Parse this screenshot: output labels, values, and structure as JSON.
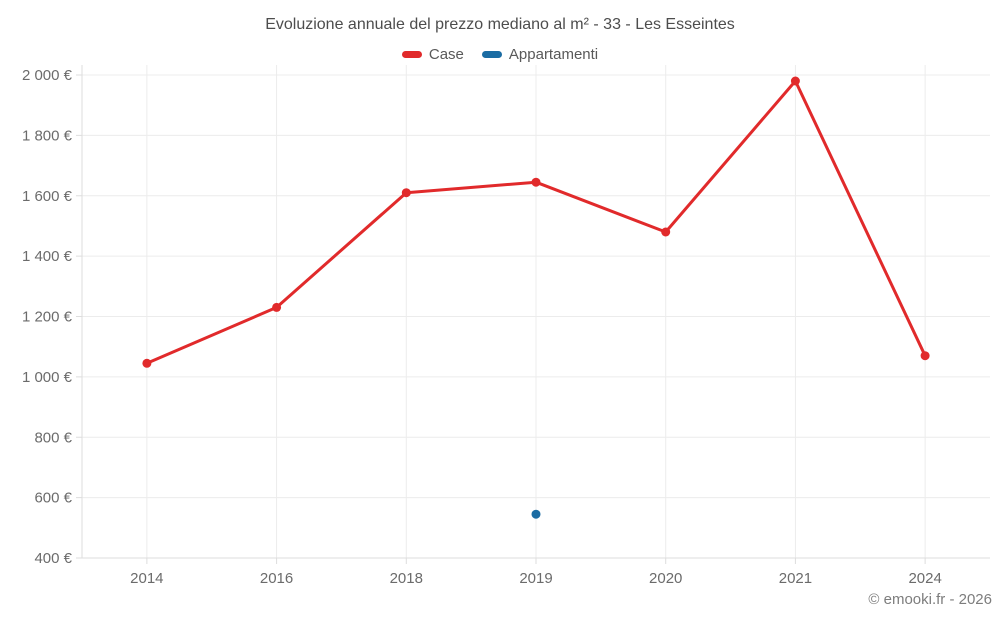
{
  "chart_data": {
    "type": "line",
    "title": "Evoluzione annuale del prezzo mediano al m² - 33 - Les Esseintes",
    "categories": [
      "2014",
      "2016",
      "2018",
      "2019",
      "2020",
      "2021",
      "2024"
    ],
    "series": [
      {
        "name": "Case",
        "color": "#e12a2b",
        "values": [
          1045,
          1230,
          1610,
          1645,
          1480,
          1980,
          1070
        ]
      },
      {
        "name": "Appartamenti",
        "color": "#1b6ca3",
        "values": [
          null,
          null,
          null,
          545,
          null,
          null,
          null
        ]
      }
    ],
    "ylim": [
      400,
      2000
    ],
    "ytick_step": 200,
    "ytick_labels": [
      "400 €",
      "600 €",
      "800 €",
      "1 000 €",
      "1 200 €",
      "1 400 €",
      "1 600 €",
      "1 800 €",
      "2 000 €"
    ],
    "xlabel": "",
    "ylabel": "",
    "grid": true,
    "legend_position": "top"
  },
  "footer": {
    "credit": "© emooki.fr - 2026"
  },
  "colors": {
    "grid": "#ececec",
    "axis": "#dddddd",
    "tick_label": "#6b6b6b",
    "title_text": "#4d4d4d",
    "legend_text": "#595959",
    "case_red": "#e12a2b",
    "appartamenti_blue": "#1b6ca3"
  }
}
